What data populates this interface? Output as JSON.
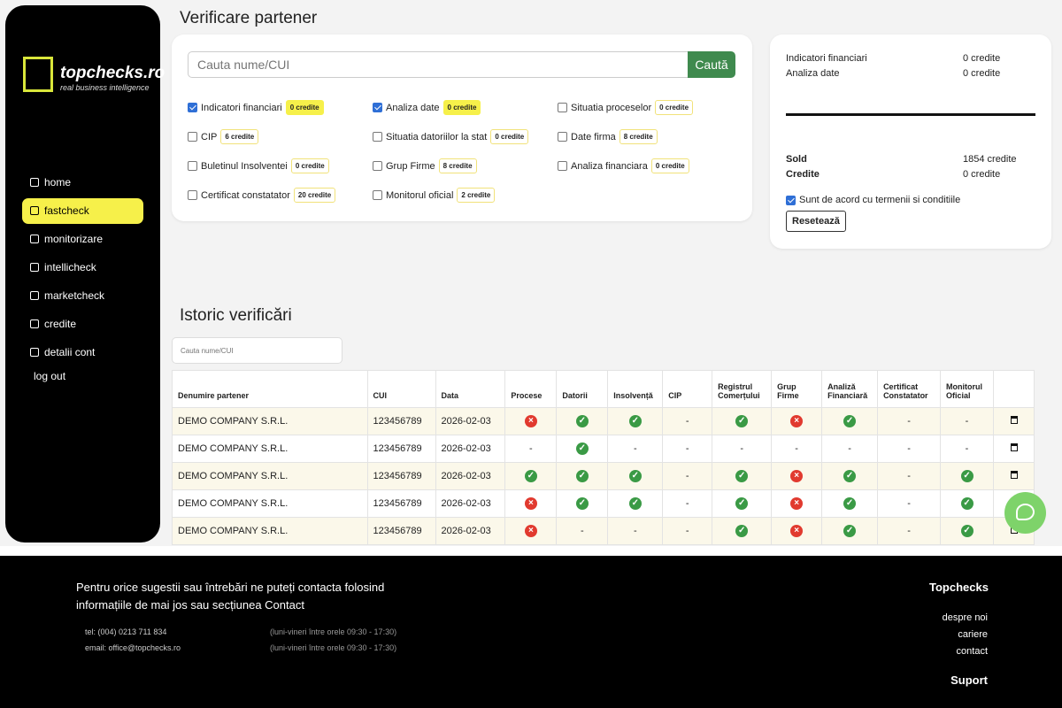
{
  "sidebar": {
    "logo": {
      "name": "topchecks.ro",
      "tagline": "real business intelligence"
    },
    "nav": [
      "home",
      "fastcheck",
      "monitorizare",
      "intellicheck",
      "marketcheck",
      "credite",
      "detalii cont"
    ],
    "active": "fastcheck",
    "logout": "log out"
  },
  "verify": {
    "title": "Verificare partener",
    "search_placeholder": "Cauta nume/CUI",
    "search_button": "Caută",
    "options": [
      {
        "label": "Indicatori financiari",
        "credits": "0 credite",
        "checked": true
      },
      {
        "label": "Analiza date",
        "credits": "0 credite",
        "checked": true
      },
      {
        "label": "Situatia proceselor",
        "credits": "0 credite",
        "checked": false
      },
      {
        "label": "CIP",
        "credits": "6 credite",
        "checked": false
      },
      {
        "label": "Situatia datoriilor la stat",
        "credits": "0 credite",
        "checked": false
      },
      {
        "label": "Date firma",
        "credits": "8 credite",
        "checked": false
      },
      {
        "label": "Buletinul Insolventei",
        "credits": "0 credite",
        "checked": false
      },
      {
        "label": "Grup Firme",
        "credits": "8 credite",
        "checked": false
      },
      {
        "label": "Analiza financiara",
        "credits": "0 credite",
        "checked": false
      },
      {
        "label": "Certificat constatator",
        "credits": "20 credite",
        "checked": false
      },
      {
        "label": "Monitorul oficial",
        "credits": "2 credite",
        "checked": false
      }
    ]
  },
  "summary": {
    "items": [
      {
        "label": "Indicatori financiari",
        "value": "0 credite"
      },
      {
        "label": "Analiza date",
        "value": "0 credite"
      }
    ],
    "totals": [
      {
        "label": "Sold",
        "value": "1854 credite"
      },
      {
        "label": "Credite",
        "value": "0 credite"
      }
    ],
    "terms": "Sunt de acord cu termenii si conditiile",
    "terms_checked": true,
    "reset": "Resetează"
  },
  "history": {
    "title": "Istoric verificări",
    "search_placeholder": "Cauta nume/CUI",
    "columns": [
      "Denumire partener",
      "CUI",
      "Data",
      "Procese",
      "Datorii",
      "Insolvență",
      "CIP",
      "Registrul Comerțului",
      "Grup Firme",
      "Analiză Financiară",
      "Certificat Constatator",
      "Monitorul Oficial"
    ],
    "rows": [
      [
        "DEMO COMPANY S.R.L.",
        "123456789",
        "2026-02-03",
        "fail",
        "ok",
        "ok",
        "-",
        "ok",
        "fail",
        "ok",
        "-",
        "-"
      ],
      [
        "DEMO COMPANY S.R.L.",
        "123456789",
        "2026-02-03",
        "-",
        "ok",
        "-",
        "-",
        "-",
        "-",
        "-",
        "-",
        "-"
      ],
      [
        "DEMO COMPANY S.R.L.",
        "123456789",
        "2026-02-03",
        "ok",
        "ok",
        "ok",
        "-",
        "ok",
        "fail",
        "ok",
        "-",
        "ok"
      ],
      [
        "DEMO COMPANY S.R.L.",
        "123456789",
        "2026-02-03",
        "fail",
        "ok",
        "ok",
        "-",
        "ok",
        "fail",
        "ok",
        "-",
        "ok"
      ],
      [
        "DEMO COMPANY S.R.L.",
        "123456789",
        "2026-02-03",
        "fail",
        "-",
        "-",
        "-",
        "ok",
        "fail",
        "ok",
        "-",
        "ok"
      ]
    ]
  },
  "footer": {
    "intro": "Pentru orice sugestii sau întrebări ne puteți contacta folosind informațiile de mai jos sau secțiunea Contact",
    "contacts": [
      {
        "text": "tel: (004) 0213 711 834",
        "hours": "(luni-vineri între orele 09:30 - 17:30)"
      },
      {
        "text": "email: office@topchecks.ro",
        "hours": "(luni-vineri între orele 09:30 - 17:30)"
      }
    ],
    "brand": "Topchecks",
    "links": [
      "despre noi",
      "cariere",
      "contact"
    ],
    "support": "Suport"
  }
}
